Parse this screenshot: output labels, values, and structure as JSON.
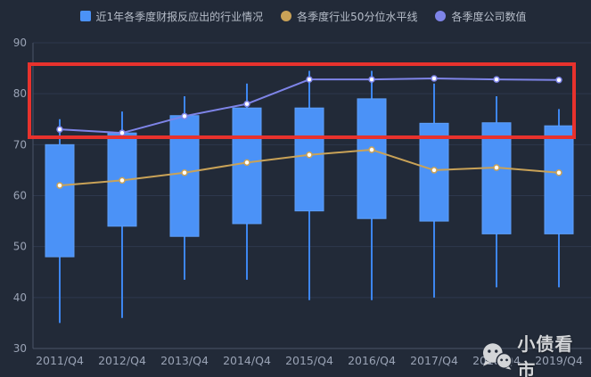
{
  "legend": {
    "items": [
      {
        "label": "近1年各季度财报反应出的行业情况",
        "marker": "square",
        "color": "#4b92f7"
      },
      {
        "label": "各季度行业50分位水平线",
        "marker": "circle",
        "color": "#c9a257"
      },
      {
        "label": "各季度公司数值",
        "marker": "circle",
        "color": "#7e84e8"
      }
    ]
  },
  "watermark": {
    "text": "小债看市",
    "icon": "wechat-logo-icon"
  },
  "colors": {
    "background": "#222a38",
    "grid_line": "#2e384d",
    "axis_line": "#4a5467",
    "tick_label": "#9aa3b5",
    "legend_text": "#b6bdc9",
    "candlestick_fill": "#4b92f7",
    "candlestick_whisker": "#3d86f0",
    "percentile_line": "#c9a257",
    "company_line": "#7e84e8",
    "annotation_red": "#e8322d",
    "watermark_text": "#d3d5d8"
  },
  "chart_data": {
    "type": "candlestick",
    "title": "",
    "categories": [
      "2011/Q4",
      "2012/Q4",
      "2013/Q4",
      "2014/Q4",
      "2015/Q4",
      "2016/Q4",
      "2017/Q4",
      "2018/Q4",
      "2019/Q4"
    ],
    "ylim": [
      30,
      90
    ],
    "yticks": [
      90,
      80,
      70,
      60,
      50,
      40,
      30
    ],
    "grid": true,
    "legend_position": "top",
    "series": [
      {
        "name": "近1年各季度财报反应出的行业情况",
        "type": "candlestick",
        "color": "#4b92f7",
        "data_format": [
          "low",
          "box_bottom",
          "box_top",
          "high"
        ],
        "data": [
          [
            35,
            48,
            70,
            75
          ],
          [
            36,
            54,
            72.3,
            76.5
          ],
          [
            43.5,
            52,
            75.7,
            79.5
          ],
          [
            43.5,
            54.5,
            77.2,
            82
          ],
          [
            39.5,
            57,
            77.2,
            84.5
          ],
          [
            39.5,
            55.5,
            79,
            84.5
          ],
          [
            40,
            55,
            74.2,
            82
          ],
          [
            42,
            52.5,
            74.3,
            79.5
          ],
          [
            42,
            52.5,
            73.7,
            77
          ]
        ]
      },
      {
        "name": "各季度行业50分位水平线",
        "type": "line",
        "color": "#c9a257",
        "values": [
          62,
          63,
          64.5,
          66.5,
          68,
          69,
          65,
          65.5,
          64.5
        ]
      },
      {
        "name": "各季度公司数值",
        "type": "line",
        "color": "#7e84e8",
        "values": [
          73,
          72.3,
          75.6,
          78,
          82.8,
          82.8,
          83,
          82.8,
          82.7
        ]
      }
    ],
    "annotation": {
      "shape": "rectangle",
      "color": "#e8322d",
      "y_from": 71,
      "y_to": 85.8,
      "note": "red highlight box spanning all categories across the upper band"
    }
  }
}
